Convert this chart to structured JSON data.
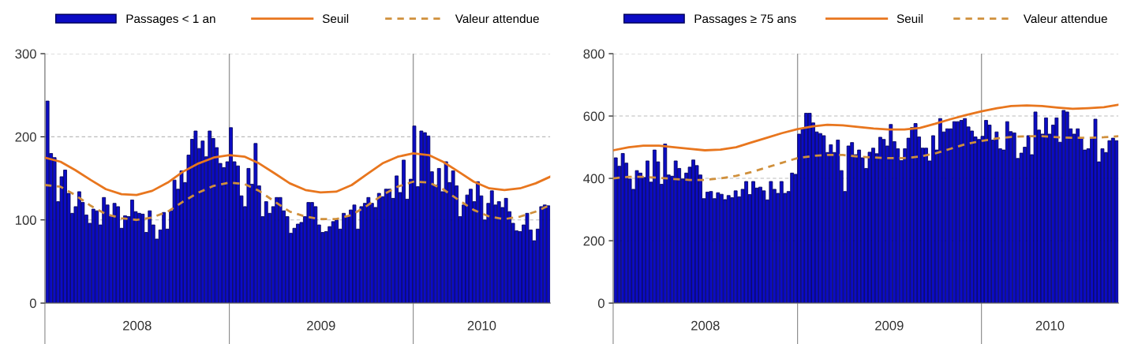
{
  "chart_data": [
    {
      "type": "bar",
      "x": [
        "2008-01-03",
        "2008-01-10",
        "2008-01-17",
        "2008-01-24",
        "2008-01-31",
        "2008-02-07",
        "2008-02-14",
        "2008-02-21",
        "2008-02-28",
        "2008-03-06",
        "2008-03-13",
        "2008-03-20",
        "2008-03-27",
        "2008-04-03",
        "2008-04-10",
        "2008-04-17",
        "2008-04-24",
        "2008-05-01",
        "2008-05-08",
        "2008-05-15",
        "2008-05-22",
        "2008-05-29",
        "2008-06-05",
        "2008-06-12",
        "2008-06-19",
        "2008-06-26",
        "2008-07-03",
        "2008-07-10",
        "2008-07-17",
        "2008-07-24",
        "2008-07-31",
        "2008-08-07",
        "2008-08-14",
        "2008-08-21",
        "2008-08-28",
        "2008-09-04",
        "2008-09-11",
        "2008-09-18",
        "2008-09-25",
        "2008-10-02",
        "2008-10-09",
        "2008-10-16",
        "2008-10-23",
        "2008-10-30",
        "2008-11-06",
        "2008-11-13",
        "2008-11-20",
        "2008-11-27",
        "2008-12-04",
        "2008-12-11",
        "2008-12-18",
        "2008-12-25",
        "2009-01-01",
        "2009-01-08",
        "2009-01-15",
        "2009-01-22",
        "2009-01-29",
        "2009-02-05",
        "2009-02-12",
        "2009-02-19",
        "2009-02-26",
        "2009-03-05",
        "2009-03-12",
        "2009-03-19",
        "2009-03-26",
        "2009-04-02",
        "2009-04-09",
        "2009-04-16",
        "2009-04-23",
        "2009-04-30",
        "2009-05-07",
        "2009-05-14",
        "2009-05-21",
        "2009-05-28",
        "2009-06-04",
        "2009-06-11",
        "2009-06-18",
        "2009-06-25",
        "2009-07-02",
        "2009-07-09",
        "2009-07-16",
        "2009-07-23",
        "2009-07-30",
        "2009-08-06",
        "2009-08-13",
        "2009-08-20",
        "2009-08-27",
        "2009-09-03",
        "2009-09-10",
        "2009-09-17",
        "2009-09-24",
        "2009-10-01",
        "2009-10-08",
        "2009-10-15",
        "2009-10-22",
        "2009-10-29",
        "2009-11-05",
        "2009-11-12",
        "2009-11-19",
        "2009-11-26",
        "2009-12-03",
        "2009-12-10",
        "2009-12-17",
        "2009-12-24",
        "2009-12-31",
        "2010-01-07",
        "2010-01-14",
        "2010-01-21",
        "2010-01-28",
        "2010-02-04",
        "2010-02-11",
        "2010-02-18",
        "2010-02-25",
        "2010-03-04",
        "2010-03-11",
        "2010-03-18",
        "2010-03-25",
        "2010-04-01",
        "2010-04-08",
        "2010-04-15",
        "2010-04-22",
        "2010-04-29",
        "2010-05-06",
        "2010-05-13",
        "2010-05-20",
        "2010-05-27",
        "2010-06-03",
        "2010-06-10",
        "2010-06-17",
        "2010-06-24",
        "2010-07-01",
        "2010-07-08",
        "2010-07-15",
        "2010-07-22",
        "2010-07-29",
        "2010-08-05",
        "2010-08-12",
        "2010-08-19",
        "2010-08-26",
        "2010-09-02",
        "2010-09-09",
        "2010-09-16",
        "2010-09-23"
      ],
      "series": [
        {
          "name": "Passages < 1 an",
          "color": "#0c0cc4",
          "values": [
            243,
            180,
            175,
            122,
            152,
            160,
            132,
            108,
            116,
            134,
            121,
            106,
            96,
            113,
            111,
            94,
            127,
            118,
            105,
            120,
            116,
            90,
            105,
            104,
            124,
            110,
            108,
            107,
            85,
            111,
            94,
            77,
            88,
            109,
            89,
            111,
            148,
            137,
            159,
            145,
            178,
            197,
            207,
            186,
            195,
            176,
            207,
            198,
            187,
            168,
            163,
            170,
            211,
            170,
            165,
            129,
            116,
            162,
            143,
            192,
            141,
            104,
            122,
            108,
            116,
            127,
            127,
            111,
            104,
            84,
            90,
            95,
            97,
            104,
            121,
            121,
            116,
            94,
            85,
            86,
            92,
            98,
            100,
            89,
            108,
            105,
            112,
            118,
            89,
            116,
            120,
            127,
            120,
            115,
            132,
            128,
            137,
            137,
            126,
            153,
            133,
            172,
            125,
            149,
            213,
            140,
            207,
            205,
            201,
            158,
            142,
            162,
            134,
            170,
            145,
            159,
            141,
            104,
            118,
            130,
            137,
            122,
            146,
            129,
            100,
            120,
            135,
            118,
            122,
            115,
            126,
            110,
            96,
            87,
            86,
            94,
            108,
            88,
            75,
            89,
            116,
            118,
            117
          ]
        },
        {
          "name": "Seuil",
          "type": "line",
          "line_style": "solid",
          "color": "#e8761e",
          "x": [
            "2008-01",
            "2008-02",
            "2008-03",
            "2008-04",
            "2008-05",
            "2008-06",
            "2008-07",
            "2008-08",
            "2008-09",
            "2008-10",
            "2008-11",
            "2008-12",
            "2009-01",
            "2009-02",
            "2009-03",
            "2009-04",
            "2009-05",
            "2009-06",
            "2009-07",
            "2009-08",
            "2009-09",
            "2009-10",
            "2009-11",
            "2009-12",
            "2010-01",
            "2010-02",
            "2010-03",
            "2010-04",
            "2010-05",
            "2010-06",
            "2010-07",
            "2010-08",
            "2010-09",
            "2010-09-30"
          ],
          "values": [
            175,
            170,
            160,
            148,
            137,
            131,
            130,
            135,
            145,
            158,
            168,
            175,
            178,
            176,
            168,
            156,
            144,
            136,
            133,
            134,
            142,
            155,
            168,
            176,
            180,
            178,
            170,
            158,
            146,
            138,
            136,
            138,
            144,
            152
          ]
        },
        {
          "name": "Valeur attendue",
          "type": "line",
          "line_style": "dashed",
          "color": "#d0903c",
          "x": [
            "2008-01",
            "2008-02",
            "2008-03",
            "2008-04",
            "2008-05",
            "2008-06",
            "2008-07",
            "2008-08",
            "2008-09",
            "2008-10",
            "2008-11",
            "2008-12",
            "2009-01",
            "2009-02",
            "2009-03",
            "2009-04",
            "2009-05",
            "2009-06",
            "2009-07",
            "2009-08",
            "2009-09",
            "2009-10",
            "2009-11",
            "2009-12",
            "2010-01",
            "2010-02",
            "2010-03",
            "2010-04",
            "2010-05",
            "2010-06",
            "2010-07",
            "2010-08",
            "2010-09",
            "2010-09-30"
          ],
          "values": [
            142,
            140,
            130,
            117,
            107,
            102,
            100,
            103,
            110,
            122,
            133,
            141,
            145,
            143,
            135,
            122,
            110,
            104,
            101,
            101,
            106,
            117,
            130,
            140,
            146,
            145,
            137,
            124,
            112,
            104,
            101,
            104,
            110,
            118
          ]
        }
      ],
      "xlim": [
        "2008-01-01",
        "2010-09-30"
      ],
      "xticks": [
        {
          "value": "2008-01-01",
          "label": null
        },
        {
          "value": "2008-07-02",
          "label": "2008"
        },
        {
          "value": "2009-01-01",
          "label": null
        },
        {
          "value": "2009-07-02",
          "label": "2009"
        },
        {
          "value": "2010-01-01",
          "label": null
        },
        {
          "value": "2010-05-17",
          "label": "2010"
        }
      ],
      "ylim": [
        0,
        300
      ],
      "yticks": [
        0,
        100,
        200,
        300
      ],
      "ref_lines": [
        {
          "axis": "x",
          "value": "2009-01-01",
          "color": "#999999"
        },
        {
          "axis": "x",
          "value": "2010-01-01",
          "color": "#999999"
        }
      ],
      "grid": "y",
      "legend": "top"
    },
    {
      "type": "bar",
      "x": [
        "2008-01-03",
        "2008-01-10",
        "2008-01-17",
        "2008-01-24",
        "2008-01-31",
        "2008-02-07",
        "2008-02-14",
        "2008-02-21",
        "2008-02-28",
        "2008-03-06",
        "2008-03-13",
        "2008-03-20",
        "2008-03-27",
        "2008-04-03",
        "2008-04-10",
        "2008-04-17",
        "2008-04-24",
        "2008-05-01",
        "2008-05-08",
        "2008-05-15",
        "2008-05-22",
        "2008-05-29",
        "2008-06-05",
        "2008-06-12",
        "2008-06-19",
        "2008-06-26",
        "2008-07-03",
        "2008-07-10",
        "2008-07-17",
        "2008-07-24",
        "2008-07-31",
        "2008-08-07",
        "2008-08-14",
        "2008-08-21",
        "2008-08-28",
        "2008-09-04",
        "2008-09-11",
        "2008-09-18",
        "2008-09-25",
        "2008-10-02",
        "2008-10-09",
        "2008-10-16",
        "2008-10-23",
        "2008-10-30",
        "2008-11-06",
        "2008-11-13",
        "2008-11-20",
        "2008-11-27",
        "2008-12-04",
        "2008-12-11",
        "2008-12-18",
        "2008-12-25",
        "2009-01-01",
        "2009-01-08",
        "2009-01-15",
        "2009-01-22",
        "2009-01-29",
        "2009-02-05",
        "2009-02-12",
        "2009-02-19",
        "2009-02-26",
        "2009-03-05",
        "2009-03-12",
        "2009-03-19",
        "2009-03-26",
        "2009-04-02",
        "2009-04-09",
        "2009-04-16",
        "2009-04-23",
        "2009-04-30",
        "2009-05-07",
        "2009-05-14",
        "2009-05-21",
        "2009-05-28",
        "2009-06-04",
        "2009-06-11",
        "2009-06-18",
        "2009-06-25",
        "2009-07-02",
        "2009-07-09",
        "2009-07-16",
        "2009-07-23",
        "2009-07-30",
        "2009-08-06",
        "2009-08-13",
        "2009-08-20",
        "2009-08-27",
        "2009-09-03",
        "2009-09-10",
        "2009-09-17",
        "2009-09-24",
        "2009-10-01",
        "2009-10-08",
        "2009-10-15",
        "2009-10-22",
        "2009-10-29",
        "2009-11-05",
        "2009-11-12",
        "2009-11-19",
        "2009-11-26",
        "2009-12-03",
        "2009-12-10",
        "2009-12-17",
        "2009-12-24",
        "2009-12-31",
        "2010-01-07",
        "2010-01-14",
        "2010-01-21",
        "2010-01-28",
        "2010-02-04",
        "2010-02-11",
        "2010-02-18",
        "2010-02-25",
        "2010-03-04",
        "2010-03-11",
        "2010-03-18",
        "2010-03-25",
        "2010-04-01",
        "2010-04-08",
        "2010-04-15",
        "2010-04-22",
        "2010-04-29",
        "2010-05-06",
        "2010-05-13",
        "2010-05-20",
        "2010-05-27",
        "2010-06-03",
        "2010-06-10",
        "2010-06-17",
        "2010-06-24",
        "2010-07-01",
        "2010-07-08",
        "2010-07-15",
        "2010-07-22",
        "2010-07-29",
        "2010-08-05",
        "2010-08-12",
        "2010-08-19",
        "2010-08-26",
        "2010-09-02",
        "2010-09-09",
        "2010-09-16",
        "2010-09-23"
      ],
      "series": [
        {
          "name": "Passages ≥ 75 ans",
          "color": "#0c0cc4",
          "values": [
            466,
            439,
            480,
            449,
            398,
            365,
            425,
            417,
            403,
            456,
            388,
            491,
            453,
            381,
            510,
            411,
            407,
            456,
            432,
            398,
            417,
            436,
            459,
            441,
            411,
            335,
            356,
            358,
            335,
            354,
            349,
            332,
            345,
            338,
            360,
            341,
            365,
            390,
            348,
            390,
            369,
            372,
            360,
            331,
            390,
            365,
            352,
            390,
            352,
            358,
            417,
            413,
            542,
            560,
            609,
            609,
            578,
            549,
            544,
            537,
            483,
            508,
            483,
            523,
            425,
            358,
            504,
            515,
            476,
            491,
            466,
            432,
            484,
            497,
            479,
            532,
            525,
            504,
            573,
            518,
            495,
            457,
            495,
            529,
            563,
            576,
            533,
            497,
            497,
            456,
            537,
            491,
            592,
            549,
            559,
            559,
            582,
            582,
            586,
            592,
            565,
            552,
            533,
            525,
            535,
            586,
            571,
            523,
            549,
            495,
            491,
            582,
            550,
            546,
            464,
            481,
            500,
            537,
            476,
            613,
            555,
            542,
            594,
            542,
            571,
            594,
            516,
            618,
            613,
            559,
            542,
            559,
            529,
            491,
            495,
            529,
            590,
            453,
            495,
            483,
            521,
            529,
            521
          ]
        },
        {
          "name": "Seuil",
          "type": "line",
          "line_style": "solid",
          "color": "#e8761e",
          "x": [
            "2008-01",
            "2008-02",
            "2008-03",
            "2008-04",
            "2008-05",
            "2008-06",
            "2008-07",
            "2008-08",
            "2008-09",
            "2008-10",
            "2008-11",
            "2008-12",
            "2009-01",
            "2009-02",
            "2009-03",
            "2009-04",
            "2009-05",
            "2009-06",
            "2009-07",
            "2009-08",
            "2009-09",
            "2009-10",
            "2009-11",
            "2009-12",
            "2010-01",
            "2010-02",
            "2010-03",
            "2010-04",
            "2010-05",
            "2010-06",
            "2010-07",
            "2010-08",
            "2010-09",
            "2010-09-30"
          ],
          "values": [
            490,
            500,
            505,
            505,
            500,
            495,
            490,
            492,
            500,
            515,
            530,
            545,
            558,
            567,
            572,
            570,
            565,
            560,
            557,
            557,
            562,
            575,
            590,
            603,
            615,
            625,
            632,
            634,
            632,
            627,
            623,
            625,
            628,
            636
          ]
        },
        {
          "name": "Valeur attendue",
          "type": "line",
          "line_style": "dashed",
          "color": "#d0903c",
          "x": [
            "2008-01",
            "2008-02",
            "2008-03",
            "2008-04",
            "2008-05",
            "2008-06",
            "2008-07",
            "2008-08",
            "2008-09",
            "2008-10",
            "2008-11",
            "2008-12",
            "2009-01",
            "2009-02",
            "2009-03",
            "2009-04",
            "2009-05",
            "2009-06",
            "2009-07",
            "2009-08",
            "2009-09",
            "2009-10",
            "2009-11",
            "2009-12",
            "2010-01",
            "2010-02",
            "2010-03",
            "2010-04",
            "2010-05",
            "2010-06",
            "2010-07",
            "2010-08",
            "2010-09",
            "2010-09-30"
          ],
          "values": [
            400,
            405,
            405,
            402,
            398,
            395,
            395,
            400,
            408,
            420,
            435,
            450,
            465,
            472,
            475,
            475,
            470,
            467,
            465,
            465,
            470,
            480,
            495,
            510,
            520,
            528,
            533,
            535,
            535,
            532,
            530,
            530,
            532,
            535
          ]
        }
      ],
      "xlim": [
        "2008-01-01",
        "2010-09-30"
      ],
      "xticks": [
        {
          "value": "2008-01-01",
          "label": null
        },
        {
          "value": "2008-07-02",
          "label": "2008"
        },
        {
          "value": "2009-01-01",
          "label": null
        },
        {
          "value": "2009-07-02",
          "label": "2009"
        },
        {
          "value": "2010-01-01",
          "label": null
        },
        {
          "value": "2010-05-17",
          "label": "2010"
        }
      ],
      "ylim": [
        0,
        800
      ],
      "yticks": [
        0,
        200,
        400,
        600,
        800
      ],
      "ref_lines": [
        {
          "axis": "x",
          "value": "2009-01-01",
          "color": "#999999"
        },
        {
          "axis": "x",
          "value": "2010-01-01",
          "color": "#999999"
        }
      ],
      "grid": "y",
      "legend": "top"
    }
  ]
}
